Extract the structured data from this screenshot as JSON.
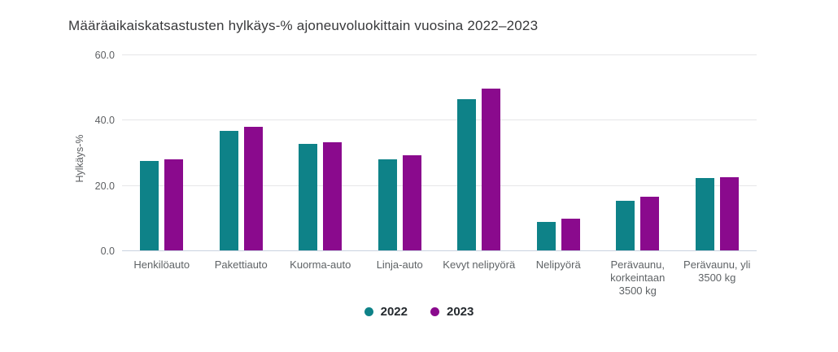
{
  "title": "Määräaikaiskatsastusten hylkäys-% ajoneuvoluokittain vuosina 2022–2023",
  "chart_data": {
    "type": "bar",
    "title": "Määräaikaiskatsastusten hylkäys-% ajoneuvoluokittain vuosina 2022–2023",
    "xlabel": "",
    "ylabel": "Hylkäys-%",
    "ylim": [
      0,
      60
    ],
    "yticks": [
      0.0,
      20.0,
      40.0,
      60.0
    ],
    "ytick_labels": [
      "0.0",
      "20.0",
      "40.0",
      "60.0"
    ],
    "grid": "horizontal",
    "legend_position": "bottom-center",
    "categories": [
      "Henkilöauto",
      "Pakettiauto",
      "Kuorma-auto",
      "Linja-auto",
      "Kevyt nelipyörä",
      "Nelipyörä",
      "Perävaunu, korkeintaan 3500 kg",
      "Perävaunu, yli 3500 kg"
    ],
    "series": [
      {
        "name": "2022",
        "color": "#0e8288",
        "values": [
          27.5,
          36.6,
          32.5,
          28.0,
          46.3,
          8.8,
          15.3,
          22.2
        ]
      },
      {
        "name": "2023",
        "color": "#8a0a8d",
        "values": [
          28.0,
          37.9,
          33.2,
          29.2,
          49.6,
          9.8,
          16.5,
          22.3
        ]
      }
    ]
  },
  "colors": {
    "series_2022": "#0e8288",
    "series_2023": "#8a0a8d",
    "gridline": "#e6e6e8",
    "baseline": "#c9d2df",
    "title_text": "#38393b",
    "axis_text": "#5e6063",
    "legend_text": "#24292e",
    "background": "#ffffff"
  }
}
